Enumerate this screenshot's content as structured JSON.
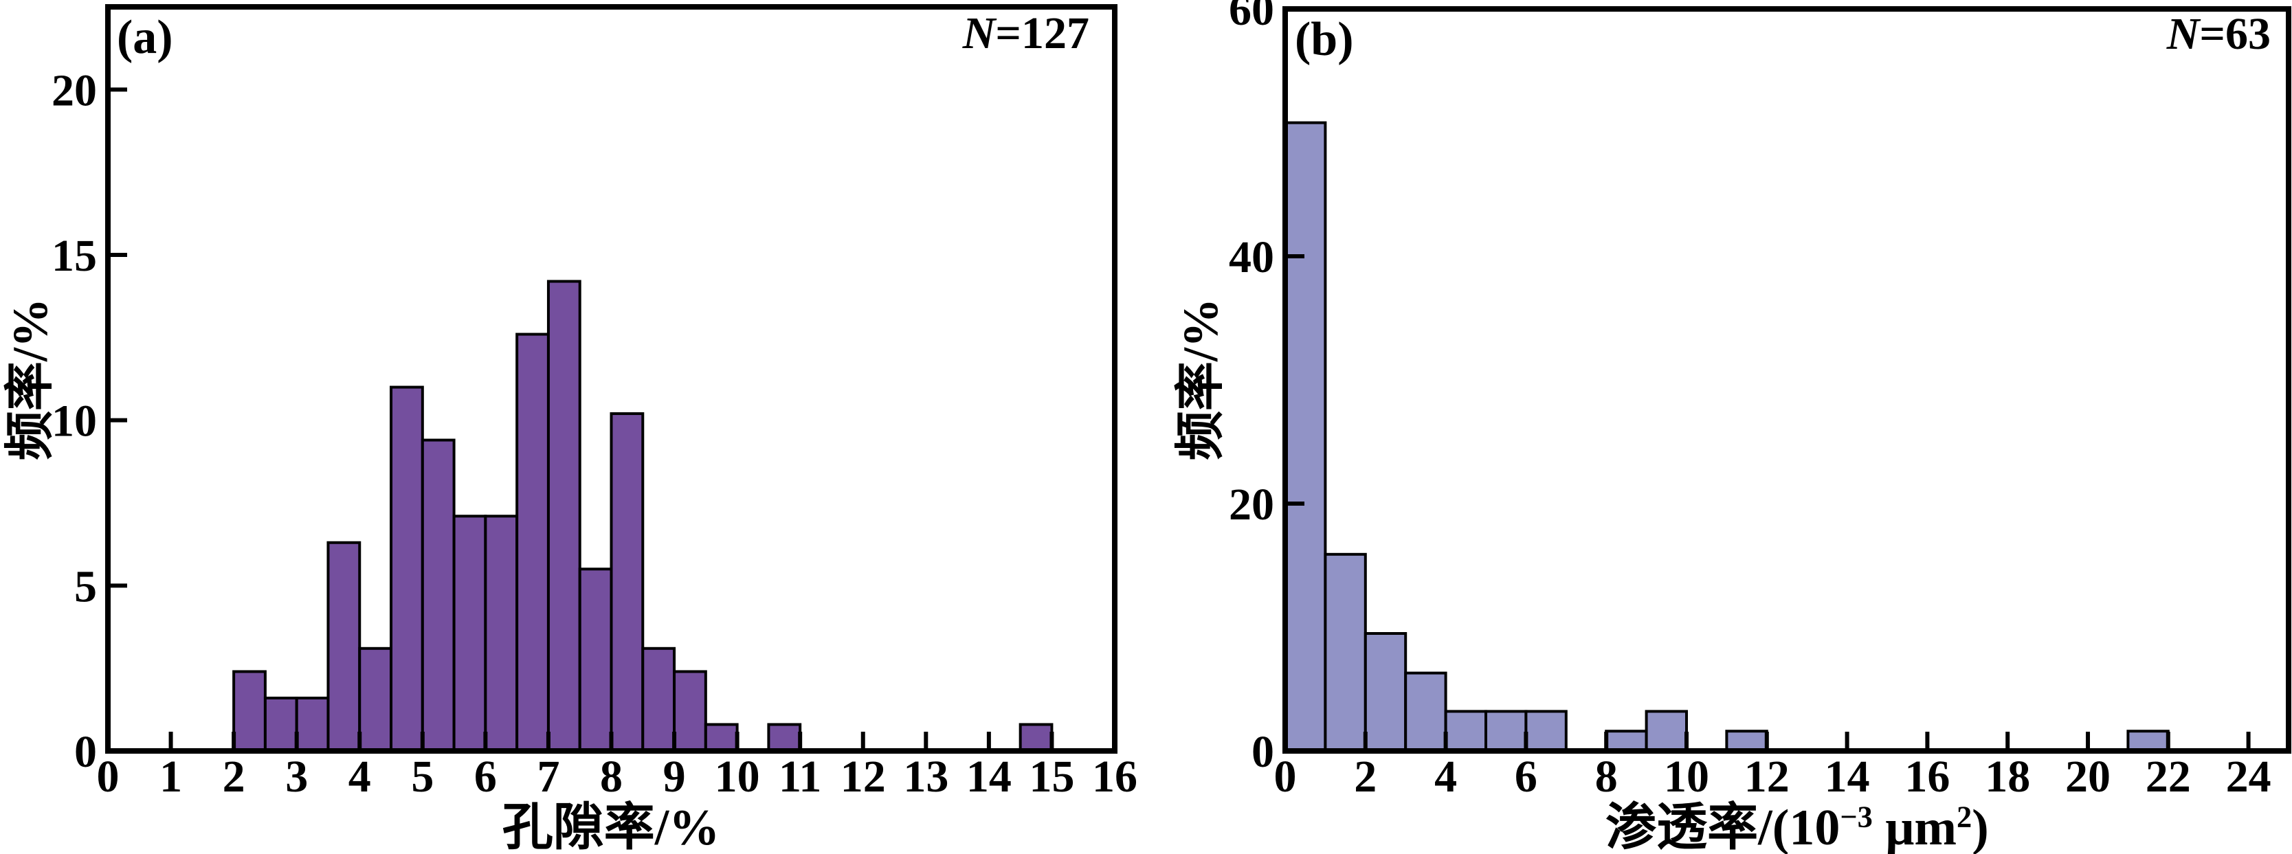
{
  "figure": {
    "background": "#ffffff",
    "frame_color": "#000000",
    "text_color": "#000000"
  },
  "chart_data": [
    {
      "type": "bar",
      "subtype": "histogram",
      "panel_label": "(a)",
      "sample_size_label": "N=127",
      "sample_size": 127,
      "xlabel": "孔隙率/%",
      "xlabel_parts": [
        {
          "t": "孔隙率/%",
          "sup": false
        }
      ],
      "ylabel": "频率/%",
      "xlim": [
        0,
        16
      ],
      "ylim": [
        0,
        22.5
      ],
      "xticks": [
        0,
        1,
        2,
        3,
        4,
        5,
        6,
        7,
        8,
        9,
        10,
        11,
        12,
        13,
        14,
        15,
        16
      ],
      "yticks": [
        0,
        5,
        10,
        15,
        20
      ],
      "grid": false,
      "legend": "none",
      "bin_width": 0.5,
      "bar_fill": "#744F9E",
      "bar_edge": "#000000",
      "bins": [
        {
          "start": 2.0,
          "freq_pct": 2.4
        },
        {
          "start": 2.5,
          "freq_pct": 1.6
        },
        {
          "start": 3.0,
          "freq_pct": 1.6
        },
        {
          "start": 3.5,
          "freq_pct": 6.3
        },
        {
          "start": 4.0,
          "freq_pct": 3.1
        },
        {
          "start": 4.5,
          "freq_pct": 11.0
        },
        {
          "start": 5.0,
          "freq_pct": 9.4
        },
        {
          "start": 5.5,
          "freq_pct": 7.1
        },
        {
          "start": 6.0,
          "freq_pct": 7.1
        },
        {
          "start": 6.5,
          "freq_pct": 12.6
        },
        {
          "start": 7.0,
          "freq_pct": 14.2
        },
        {
          "start": 7.5,
          "freq_pct": 5.5
        },
        {
          "start": 8.0,
          "freq_pct": 10.2
        },
        {
          "start": 8.5,
          "freq_pct": 3.1
        },
        {
          "start": 9.0,
          "freq_pct": 2.4
        },
        {
          "start": 9.5,
          "freq_pct": 0.8
        },
        {
          "start": 10.5,
          "freq_pct": 0.8
        },
        {
          "start": 14.5,
          "freq_pct": 0.8
        }
      ]
    },
    {
      "type": "bar",
      "subtype": "histogram",
      "panel_label": "(b)",
      "sample_size_label": "N=63",
      "sample_size": 63,
      "xlabel": "渗透率/(10⁻³ μm²)",
      "xlabel_parts": [
        {
          "t": "渗透率/(10",
          "sup": false
        },
        {
          "t": "−3",
          "sup": true
        },
        {
          "t": " μm",
          "sup": false
        },
        {
          "t": "2",
          "sup": true
        },
        {
          "t": ")",
          "sup": false
        }
      ],
      "ylabel": "频率/%",
      "xlim": [
        0,
        25
      ],
      "ylim": [
        0,
        60
      ],
      "xticks": [
        0,
        2,
        4,
        6,
        8,
        10,
        12,
        14,
        16,
        18,
        20,
        22,
        24
      ],
      "yticks": [
        0,
        20,
        40,
        60
      ],
      "grid": false,
      "legend": "none",
      "bin_width": 1,
      "bar_fill": "#9193C6",
      "bar_edge": "#000000",
      "bins": [
        {
          "start": 0,
          "freq_pct": 50.8
        },
        {
          "start": 1,
          "freq_pct": 15.9
        },
        {
          "start": 2,
          "freq_pct": 9.5
        },
        {
          "start": 3,
          "freq_pct": 6.3
        },
        {
          "start": 4,
          "freq_pct": 3.2
        },
        {
          "start": 5,
          "freq_pct": 3.2
        },
        {
          "start": 6,
          "freq_pct": 3.2
        },
        {
          "start": 8,
          "freq_pct": 1.6
        },
        {
          "start": 9,
          "freq_pct": 3.2
        },
        {
          "start": 11,
          "freq_pct": 1.6
        },
        {
          "start": 21,
          "freq_pct": 1.6
        }
      ]
    }
  ]
}
